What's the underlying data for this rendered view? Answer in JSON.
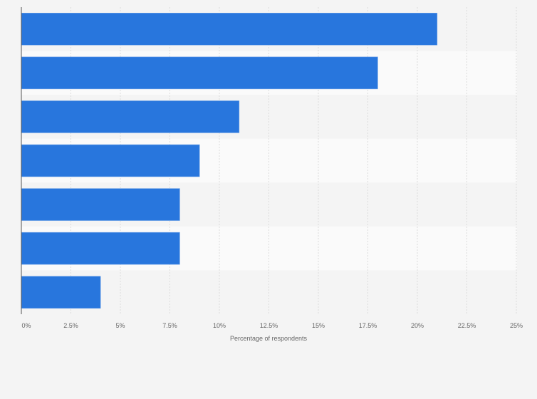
{
  "chart_data": {
    "type": "bar",
    "orientation": "horizontal",
    "title": "",
    "categories": [
      "",
      "",
      "",
      "",
      "",
      "",
      ""
    ],
    "values": [
      21,
      18,
      11,
      9,
      8,
      8,
      4
    ],
    "xlabel": "Percentage of respondents",
    "ylabel": "",
    "xlim": [
      0,
      25
    ],
    "xticks": [
      0,
      2.5,
      5,
      7.5,
      10,
      12.5,
      15,
      17.5,
      20,
      22.5,
      25
    ],
    "xtick_labels": [
      "0%",
      "2.5%",
      "5%",
      "7.5%",
      "10%",
      "12.5%",
      "15%",
      "17.5%",
      "20%",
      "22.5%",
      "25%"
    ],
    "grid": true,
    "colors": {
      "bar": "#2876dd",
      "background": "#f4f4f4",
      "band": "#fafafa",
      "grid": "#dcdcdc",
      "axis": "#555555"
    }
  }
}
